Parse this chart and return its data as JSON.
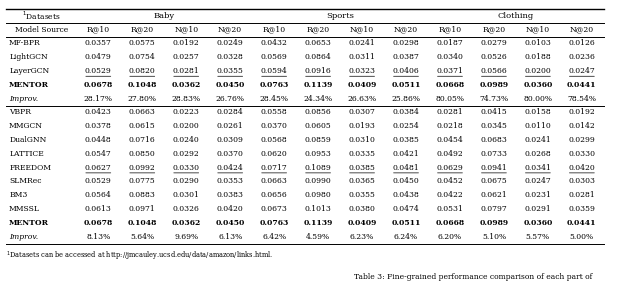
{
  "title_top": "1Datasets",
  "footnote": "1Datasets can be accessed at http://jmcauley.ucsd.edu/data/amazon/links.html.",
  "caption": "Table 3: Fine-grained performance comparison of each part of",
  "datasets": [
    "Baby",
    "Sports",
    "Clothing"
  ],
  "metrics": [
    "R@10",
    "R@20",
    "N@10",
    "N@20"
  ],
  "col_header_row1": [
    "1Datasets",
    "Baby",
    "",
    "",
    "",
    "Sports",
    "",
    "",
    "",
    "Clothing",
    "",
    "",
    ""
  ],
  "col_header_row2": [
    "Model Source",
    "R@10",
    "R@20",
    "N@10",
    "N@20",
    "R@10",
    "R@20",
    "N@10",
    "N@20",
    "R@10",
    "R@20",
    "N@10",
    "N@20"
  ],
  "group1_rows": [
    [
      "MF-BPR",
      "0.0357",
      "0.0575",
      "0.0192",
      "0.0249",
      "0.0432",
      "0.0653",
      "0.0241",
      "0.0298",
      "0.0187",
      "0.0279",
      "0.0103",
      "0.0126"
    ],
    [
      "LightGCN",
      "0.0479",
      "0.0754",
      "0.0257",
      "0.0328",
      "0.0569",
      "0.0864",
      "0.0311",
      "0.0387",
      "0.0340",
      "0.0526",
      "0.0188",
      "0.0236"
    ],
    [
      "LayerGCN",
      "0.0529",
      "0.0820",
      "0.0281",
      "0.0355",
      "0.0594",
      "0.0916",
      "0.0323",
      "0.0406",
      "0.0371",
      "0.0566",
      "0.0200",
      "0.0247"
    ],
    [
      "MENTOR",
      "0.0678",
      "0.1048",
      "0.0362",
      "0.0450",
      "0.0763",
      "0.1139",
      "0.0409",
      "0.0511",
      "0.0668",
      "0.0989",
      "0.0360",
      "0.0441"
    ]
  ],
  "group1_improv": [
    "Improv.",
    "28.17%",
    "27.80%",
    "28.83%",
    "26.76%",
    "28.45%",
    "24.34%",
    "26.63%",
    "25.86%",
    "80.05%",
    "74.73%",
    "80.00%",
    "78.54%"
  ],
  "group2_rows": [
    [
      "VBPR",
      "0.0423",
      "0.0663",
      "0.0223",
      "0.0284",
      "0.0558",
      "0.0856",
      "0.0307",
      "0.0384",
      "0.0281",
      "0.0415",
      "0.0158",
      "0.0192"
    ],
    [
      "MMGCN",
      "0.0378",
      "0.0615",
      "0.0200",
      "0.0261",
      "0.0370",
      "0.0605",
      "0.0193",
      "0.0254",
      "0.0218",
      "0.0345",
      "0.0110",
      "0.0142"
    ],
    [
      "DualGNN",
      "0.0448",
      "0.0716",
      "0.0240",
      "0.0309",
      "0.0568",
      "0.0859",
      "0.0310",
      "0.0385",
      "0.0454",
      "0.0683",
      "0.0241",
      "0.0299"
    ],
    [
      "LATTICE",
      "0.0547",
      "0.0850",
      "0.0292",
      "0.0370",
      "0.0620",
      "0.0953",
      "0.0335",
      "0.0421",
      "0.0492",
      "0.0733",
      "0.0268",
      "0.0330"
    ],
    [
      "FREEDOM",
      "0.0627",
      "0.0992",
      "0.0330",
      "0.0424",
      "0.0717",
      "0.1089",
      "0.0385",
      "0.0481",
      "0.0629",
      "0.0941",
      "0.0341",
      "0.0420"
    ],
    [
      "SLMRec",
      "0.0529",
      "0.0775",
      "0.0290",
      "0.0353",
      "0.0663",
      "0.0990",
      "0.0365",
      "0.0450",
      "0.0452",
      "0.0675",
      "0.0247",
      "0.0303"
    ],
    [
      "BM3",
      "0.0564",
      "0.0883",
      "0.0301",
      "0.0383",
      "0.0656",
      "0.0980",
      "0.0355",
      "0.0438",
      "0.0422",
      "0.0621",
      "0.0231",
      "0.0281"
    ],
    [
      "MMSSL",
      "0.0613",
      "0.0971",
      "0.0326",
      "0.0420",
      "0.0673",
      "0.1013",
      "0.0380",
      "0.0474",
      "0.0531",
      "0.0797",
      "0.0291",
      "0.0359"
    ],
    [
      "MENTOR",
      "0.0678",
      "0.1048",
      "0.0362",
      "0.0450",
      "0.0763",
      "0.1139",
      "0.0409",
      "0.0511",
      "0.0668",
      "0.0989",
      "0.0360",
      "0.0441"
    ]
  ],
  "group2_improv": [
    "Improv.",
    "8.13%",
    "5.64%",
    "9.69%",
    "6.13%",
    "6.42%",
    "4.59%",
    "6.23%",
    "6.24%",
    "6.20%",
    "5.10%",
    "5.57%",
    "5.00%"
  ],
  "underline_g1": [
    [
      2,
      1,
      1,
      1,
      1,
      1,
      1,
      1,
      1,
      1,
      1,
      1,
      1
    ]
  ],
  "underline_g2": [
    [
      4,
      1,
      1,
      1,
      1,
      1,
      1,
      1,
      1,
      1,
      1,
      1,
      1
    ]
  ],
  "bg_color": "#ffffff",
  "header_bg": "#ffffff",
  "bold_row_g1": 3,
  "bold_row_g2": 8,
  "font_size": 5.5,
  "header_font_size": 6.0
}
